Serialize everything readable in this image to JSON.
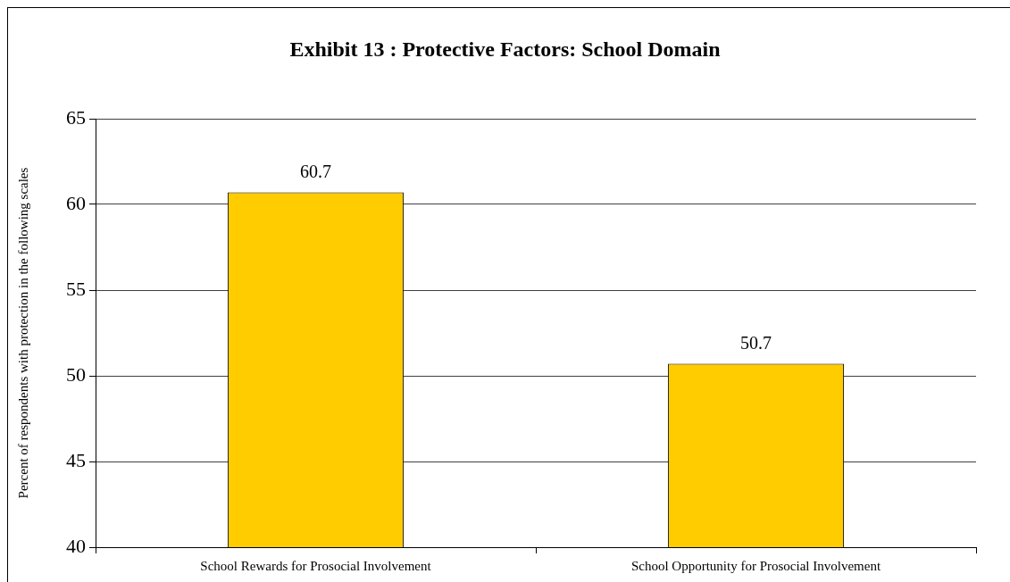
{
  "chart_data": {
    "type": "bar",
    "title": "Exhibit 13 : Protective Factors: School Domain",
    "ylabel": "Percent of respondents with protection in the following scales",
    "categories": [
      "School Rewards for Prosocial Involvement",
      "School Opportunity for Prosocial Involvement"
    ],
    "values": [
      60.7,
      50.7
    ],
    "color": "#ffcc00",
    "ylim": [
      40,
      65
    ],
    "yticks": [
      40,
      45,
      50,
      55,
      60,
      65
    ],
    "grid": "y",
    "legend": false,
    "data_labels": true
  }
}
